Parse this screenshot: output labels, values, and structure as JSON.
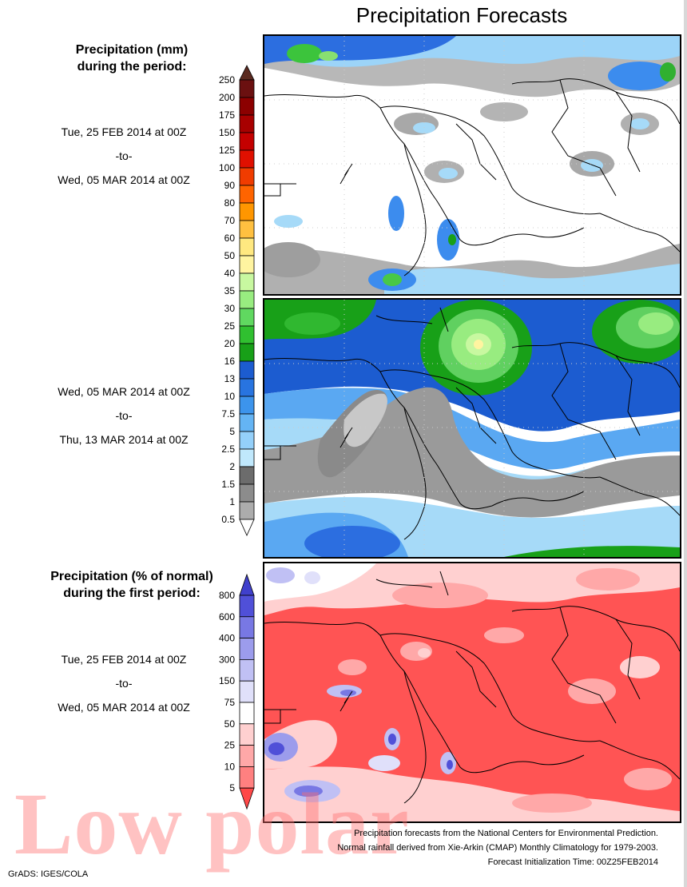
{
  "header": {
    "title": "Precipitation Forecasts"
  },
  "section1": {
    "title_line1": "Precipitation (mm)",
    "title_line2": "during the period:",
    "period1": {
      "start": "Tue, 25 FEB 2014 at 00Z",
      "sep": "-to-",
      "end": "Wed, 05 MAR 2014 at 00Z"
    },
    "period2": {
      "start": "Wed, 05 MAR 2014 at 00Z",
      "sep": "-to-",
      "end": "Thu, 13 MAR 2014 at 00Z"
    }
  },
  "section2": {
    "title_line1": "Precipitation (% of normal)",
    "title_line2": "during the first period:",
    "period": {
      "start": "Tue, 25 FEB 2014 at 00Z",
      "sep": "-to-",
      "end": "Wed, 05 MAR 2014 at 00Z"
    }
  },
  "precip_scale": {
    "labels": [
      "250",
      "200",
      "175",
      "150",
      "125",
      "100",
      "90",
      "80",
      "70",
      "60",
      "50",
      "40",
      "35",
      "30",
      "25",
      "20",
      "16",
      "13",
      "10",
      "7.5",
      "5",
      "2.5",
      "2",
      "1.5",
      "1",
      "0.5"
    ],
    "colors": [
      "#6b1010",
      "#8c0000",
      "#a80000",
      "#c40000",
      "#e01000",
      "#f03c00",
      "#ff6400",
      "#ff9600",
      "#ffc040",
      "#ffe880",
      "#fff4a0",
      "#c8f8a0",
      "#98ec80",
      "#60d860",
      "#30c030",
      "#18a018",
      "#1c5cd0",
      "#2874e0",
      "#3c94ec",
      "#64b4f4",
      "#94d0fa",
      "#c0e8fc",
      "#6c6c6c",
      "#8c8c8c",
      "#acacac",
      "#cccccc"
    ],
    "top_arrow_color": "#5a2a20"
  },
  "pct_scale": {
    "labels": [
      "800",
      "600",
      "400",
      "300",
      "150",
      "75",
      "50",
      "25",
      "10",
      "5"
    ],
    "colors": [
      "#5050d8",
      "#7878e4",
      "#9c9cec",
      "#c0c0f4",
      "#e0e0fa",
      "#ffffff",
      "#ffd0d0",
      "#ffa8a8",
      "#ff8080",
      "#ff5454"
    ],
    "top_arrow_color": "#4040cc",
    "bottom_arrow_color": "#ff4848"
  },
  "footer": {
    "line1": "Precipitation forecasts from the National Centers for Environmental Prediction.",
    "line2": "Normal rainfall derived from Xie-Arkin (CMAP) Monthly Climatology for 1979-2003.",
    "line3": "Forecast Initialization Time: 00Z25FEB2014"
  },
  "credit": "GrADS: IGES/COLA",
  "watermark": "Low polar"
}
